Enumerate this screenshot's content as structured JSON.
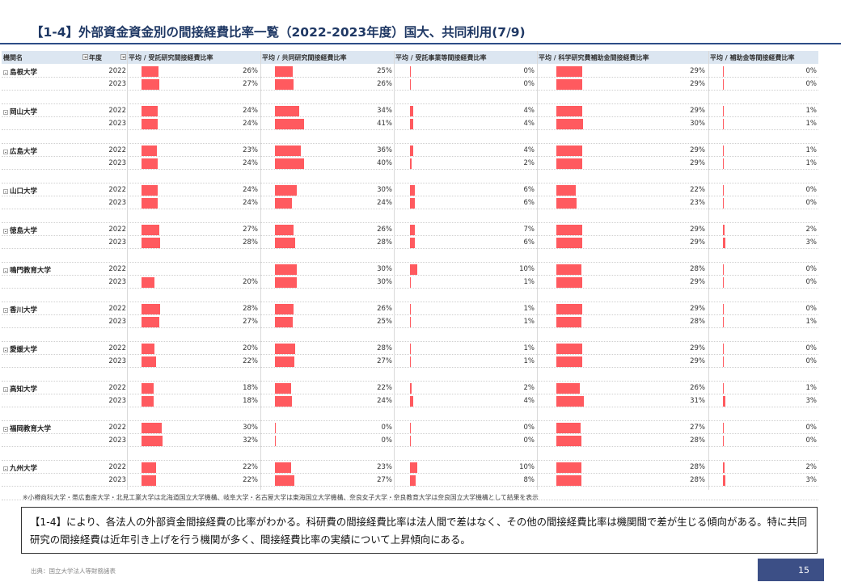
{
  "title": "【1-4】外部資金資金別の間接経費比率一覧（2022-2023年度）国大、共同利用(7/9)",
  "columns": {
    "name": "機関名",
    "year": "年度",
    "c1": "平均 / 受託研究間接経費比率",
    "c2": "平均 / 共同研究間接経費比率",
    "c3": "平均 / 受託事業等間接経費比率",
    "c4": "平均 / 科学研究費補助金間接経費比率",
    "c5": "平均 / 補助金等間接経費比率"
  },
  "institutions": [
    {
      "name": "島根大学",
      "rows": [
        {
          "year": "2022",
          "v": [
            26,
            25,
            0,
            29,
            0
          ],
          "t": [
            "26%",
            "25%",
            "0%",
            "29%",
            "0%"
          ]
        },
        {
          "year": "2023",
          "v": [
            27,
            26,
            0,
            29,
            0
          ],
          "t": [
            "27%",
            "26%",
            "0%",
            "29%",
            "0%"
          ]
        }
      ]
    },
    {
      "name": "岡山大学",
      "rows": [
        {
          "year": "2022",
          "v": [
            24,
            34,
            4,
            29,
            1
          ],
          "t": [
            "24%",
            "34%",
            "4%",
            "29%",
            "1%"
          ]
        },
        {
          "year": "2023",
          "v": [
            24,
            41,
            4,
            30,
            1
          ],
          "t": [
            "24%",
            "41%",
            "4%",
            "30%",
            "1%"
          ]
        }
      ]
    },
    {
      "name": "広島大学",
      "rows": [
        {
          "year": "2022",
          "v": [
            23,
            36,
            4,
            29,
            1
          ],
          "t": [
            "23%",
            "36%",
            "4%",
            "29%",
            "1%"
          ]
        },
        {
          "year": "2023",
          "v": [
            24,
            40,
            2,
            29,
            1
          ],
          "t": [
            "24%",
            "40%",
            "2%",
            "29%",
            "1%"
          ]
        }
      ]
    },
    {
      "name": "山口大学",
      "rows": [
        {
          "year": "2022",
          "v": [
            24,
            30,
            6,
            22,
            0
          ],
          "t": [
            "24%",
            "30%",
            "6%",
            "22%",
            "0%"
          ]
        },
        {
          "year": "2023",
          "v": [
            24,
            24,
            6,
            23,
            0
          ],
          "t": [
            "24%",
            "24%",
            "6%",
            "23%",
            "0%"
          ]
        }
      ]
    },
    {
      "name": "徳島大学",
      "rows": [
        {
          "year": "2022",
          "v": [
            27,
            26,
            7,
            29,
            2
          ],
          "t": [
            "27%",
            "26%",
            "7%",
            "29%",
            "2%"
          ]
        },
        {
          "year": "2023",
          "v": [
            28,
            28,
            6,
            29,
            3
          ],
          "t": [
            "28%",
            "28%",
            "6%",
            "29%",
            "3%"
          ]
        }
      ]
    },
    {
      "name": "鳴門教育大学",
      "rows": [
        {
          "year": "2022",
          "v": [
            null,
            30,
            10,
            28,
            0
          ],
          "t": [
            "",
            "30%",
            "10%",
            "28%",
            "0%"
          ]
        },
        {
          "year": "2023",
          "v": [
            20,
            30,
            1,
            29,
            0
          ],
          "t": [
            "20%",
            "30%",
            "1%",
            "29%",
            "0%"
          ]
        }
      ]
    },
    {
      "name": "香川大学",
      "rows": [
        {
          "year": "2022",
          "v": [
            28,
            26,
            1,
            29,
            0
          ],
          "t": [
            "28%",
            "26%",
            "1%",
            "29%",
            "0%"
          ]
        },
        {
          "year": "2023",
          "v": [
            27,
            25,
            1,
            28,
            1
          ],
          "t": [
            "27%",
            "25%",
            "1%",
            "28%",
            "1%"
          ]
        }
      ]
    },
    {
      "name": "愛媛大学",
      "rows": [
        {
          "year": "2022",
          "v": [
            20,
            28,
            1,
            29,
            0
          ],
          "t": [
            "20%",
            "28%",
            "1%",
            "29%",
            "0%"
          ]
        },
        {
          "year": "2023",
          "v": [
            22,
            27,
            1,
            29,
            0
          ],
          "t": [
            "22%",
            "27%",
            "1%",
            "29%",
            "0%"
          ]
        }
      ]
    },
    {
      "name": "高知大学",
      "rows": [
        {
          "year": "2022",
          "v": [
            18,
            22,
            2,
            26,
            1
          ],
          "t": [
            "18%",
            "22%",
            "2%",
            "26%",
            "1%"
          ]
        },
        {
          "year": "2023",
          "v": [
            18,
            24,
            4,
            31,
            3
          ],
          "t": [
            "18%",
            "24%",
            "4%",
            "31%",
            "3%"
          ]
        }
      ]
    },
    {
      "name": "福岡教育大学",
      "rows": [
        {
          "year": "2022",
          "v": [
            30,
            0,
            0,
            27,
            0
          ],
          "t": [
            "30%",
            "0%",
            "0%",
            "27%",
            "0%"
          ]
        },
        {
          "year": "2023",
          "v": [
            32,
            0,
            0,
            28,
            0
          ],
          "t": [
            "32%",
            "0%",
            "0%",
            "28%",
            "0%"
          ]
        }
      ]
    },
    {
      "name": "九州大学",
      "rows": [
        {
          "year": "2022",
          "v": [
            22,
            23,
            10,
            28,
            2
          ],
          "t": [
            "22%",
            "23%",
            "10%",
            "28%",
            "2%"
          ]
        },
        {
          "year": "2023",
          "v": [
            22,
            27,
            8,
            28,
            3
          ],
          "t": [
            "22%",
            "27%",
            "8%",
            "28%",
            "3%"
          ]
        }
      ]
    }
  ],
  "footnote": "※小樽商科大学・帯広畜産大学・北見工業大学は北海道国立大学機構、岐阜大学・名古屋大学は東海国立大学機構、奈良女子大学・奈良教育大学は奈良国立大学機構として結果を表示",
  "summary": "【1-4】により、各法人の外部資金間接経費の比率がわかる。科研費の間接経費比率は法人間で差はなく、その他の間接経費比率は機関間で差が生じる傾向がある。特に共同研究の間接経費は近年引き上げを行う機関が多く、間接経費比率の実績について上昇傾向にある。",
  "source": "出典：国立大学法人等財務諸表",
  "page_number": "15",
  "colors": {
    "bar": "#ff5a5f",
    "title": "#1f3864",
    "header_bg": "#dce6f1",
    "page_box": "#3c4f86"
  }
}
